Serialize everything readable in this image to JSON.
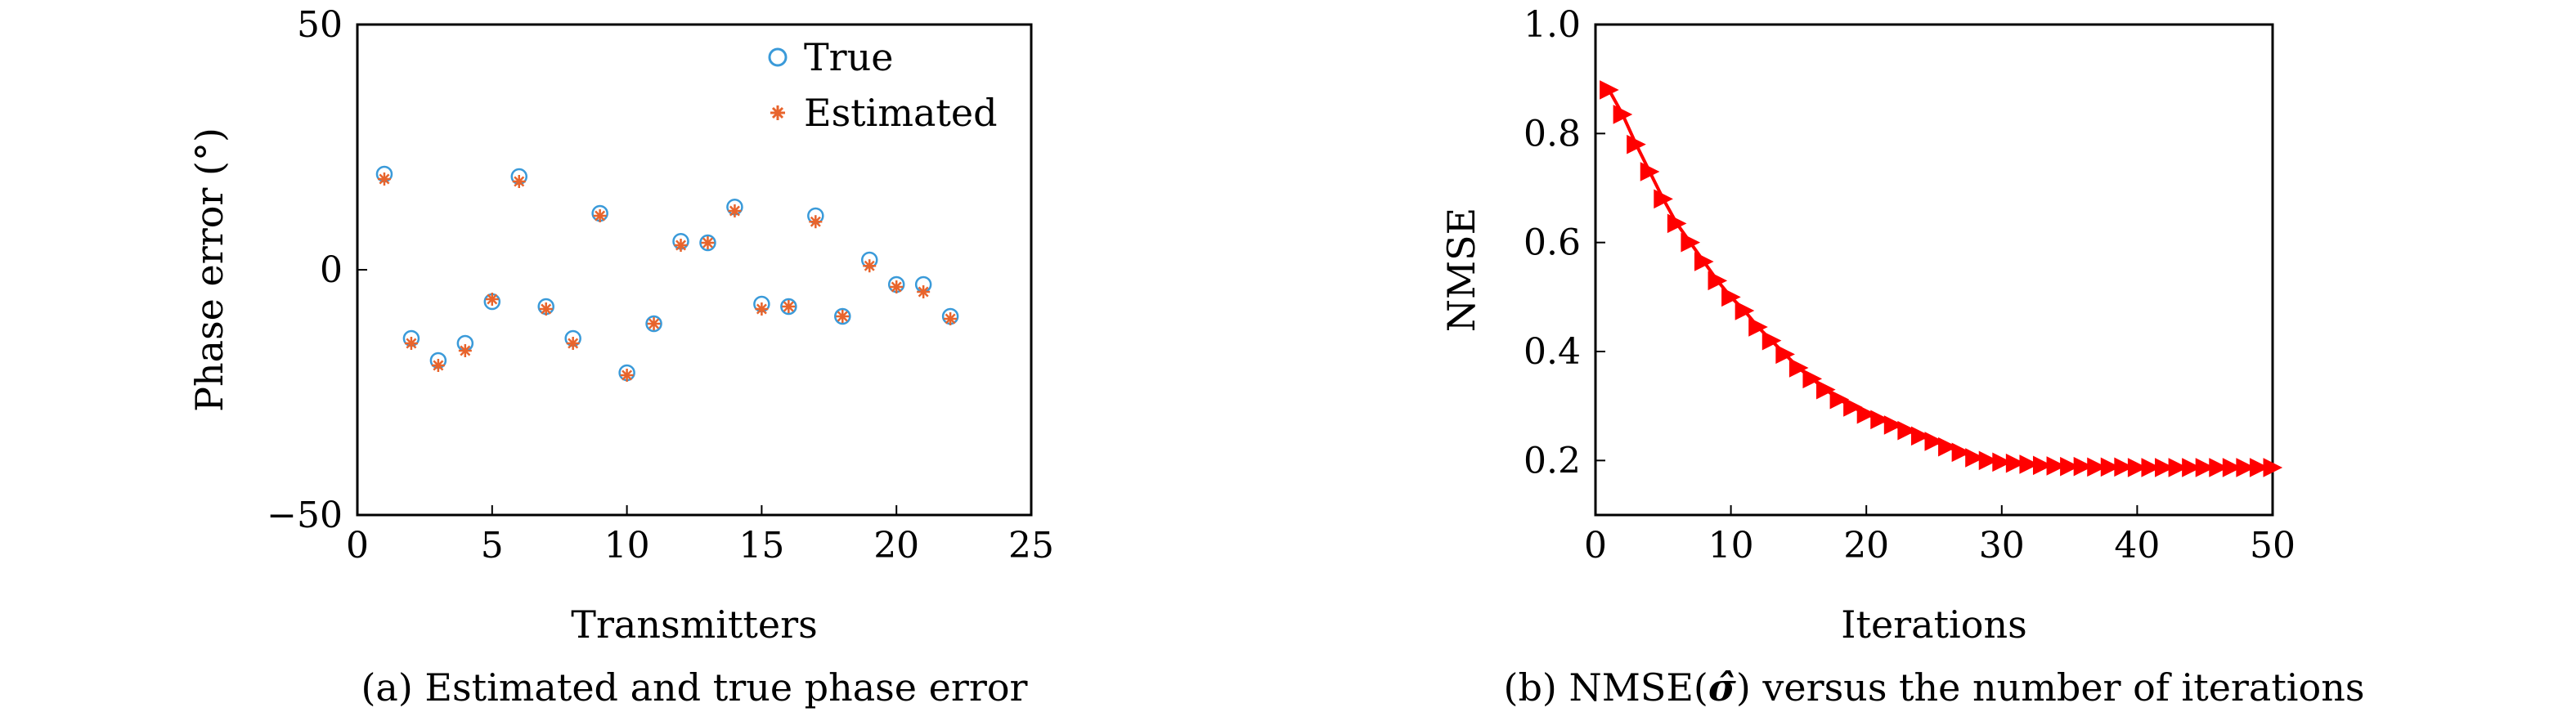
{
  "chart_data": [
    {
      "type": "scatter",
      "xlabel": "Transmitters",
      "ylabel": "Phase error (°)",
      "caption": "(a) Estimated and true phase error",
      "xlim": [
        0,
        25
      ],
      "ylim": [
        -50,
        50
      ],
      "xticks": [
        "0",
        "5",
        "10",
        "15",
        "20",
        "25"
      ],
      "yticks": [
        "50",
        "0",
        "−50"
      ],
      "legend_position": "top-right",
      "series": [
        {
          "name": "True",
          "marker": "circle",
          "color": "#3a9ad9",
          "x": [
            1,
            2,
            3,
            4,
            5,
            6,
            7,
            8,
            9,
            10,
            11,
            12,
            13,
            14,
            15,
            16,
            17,
            18,
            19,
            20,
            21,
            22
          ],
          "y": [
            19.5,
            -14,
            -18.5,
            -15,
            -6.5,
            19,
            -7.5,
            -14,
            11.5,
            -21,
            -11,
            5.8,
            5.5,
            12.8,
            -7,
            -7.5,
            11,
            -9.5,
            2,
            -3,
            -3,
            -9.5
          ]
        },
        {
          "name": "Estimated",
          "marker": "asterisk",
          "color": "#e8642c",
          "x": [
            1,
            2,
            3,
            4,
            5,
            6,
            7,
            8,
            9,
            10,
            11,
            12,
            13,
            14,
            15,
            16,
            17,
            18,
            19,
            20,
            21,
            22
          ],
          "y": [
            18.5,
            -15,
            -19.5,
            -16.5,
            -6,
            18,
            -8,
            -15,
            11,
            -21.5,
            -11,
            5,
            5.5,
            12,
            -8,
            -7.5,
            9.8,
            -9.5,
            0.8,
            -3.5,
            -4.5,
            -10
          ]
        }
      ]
    },
    {
      "type": "line",
      "xlabel": "Iterations",
      "ylabel": "NMSE",
      "caption_prefix": "(b) NMSE(",
      "caption_symbol": "σ̂",
      "caption_suffix": ") versus the number of iterations",
      "xlim": [
        0,
        50
      ],
      "ylim": [
        0.1,
        1.0
      ],
      "xticks": [
        "0",
        "10",
        "20",
        "30",
        "40",
        "50"
      ],
      "yticks": [
        "1.0",
        "0.8",
        "0.6",
        "0.4",
        "0.2"
      ],
      "series": [
        {
          "marker": "triangle",
          "color": "#ff0000",
          "x": [
            1,
            2,
            3,
            4,
            5,
            6,
            7,
            8,
            9,
            10,
            11,
            12,
            13,
            14,
            15,
            16,
            17,
            18,
            19,
            20,
            21,
            22,
            23,
            24,
            25,
            26,
            27,
            28,
            29,
            30,
            31,
            32,
            33,
            34,
            35,
            36,
            37,
            38,
            39,
            40,
            41,
            42,
            43,
            44,
            45,
            46,
            47,
            48,
            49,
            50
          ],
          "y": [
            0.88,
            0.835,
            0.78,
            0.73,
            0.68,
            0.635,
            0.6,
            0.565,
            0.53,
            0.5,
            0.475,
            0.445,
            0.42,
            0.395,
            0.37,
            0.35,
            0.33,
            0.312,
            0.298,
            0.285,
            0.275,
            0.265,
            0.255,
            0.245,
            0.235,
            0.225,
            0.215,
            0.205,
            0.2,
            0.197,
            0.195,
            0.193,
            0.191,
            0.19,
            0.189,
            0.189,
            0.188,
            0.188,
            0.188,
            0.187,
            0.187,
            0.187,
            0.187,
            0.187,
            0.187,
            0.187,
            0.187,
            0.187,
            0.187,
            0.187
          ]
        }
      ]
    }
  ]
}
